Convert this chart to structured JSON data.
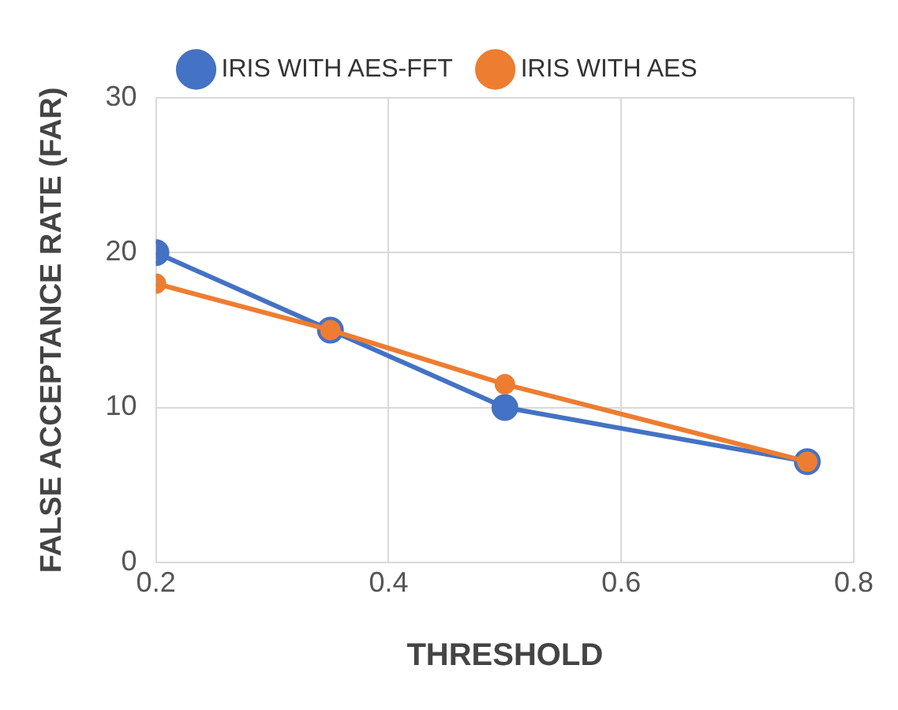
{
  "chart_data": {
    "type": "line",
    "xlabel": "THRESHOLD",
    "ylabel": "FALSE ACCEPTANCE RATE (FAR)",
    "x": [
      0.2,
      0.35,
      0.5,
      0.76
    ],
    "series": [
      {
        "name": "IRIS WITH AES-FFT",
        "color": "#4472c4",
        "values": [
          20,
          15,
          10,
          6.5
        ]
      },
      {
        "name": "IRIS WITH AES",
        "color": "#ed7d31",
        "values": [
          18,
          15,
          11.5,
          6.5
        ]
      }
    ],
    "xlim": [
      0.2,
      0.8
    ],
    "xticks": [
      0.2,
      0.4,
      0.6,
      0.8
    ],
    "ylim": [
      0,
      30
    ],
    "yticks": [
      0,
      10,
      20,
      30
    ],
    "grid": true,
    "legend": "top",
    "marker": "circle",
    "line_style": "solid"
  }
}
